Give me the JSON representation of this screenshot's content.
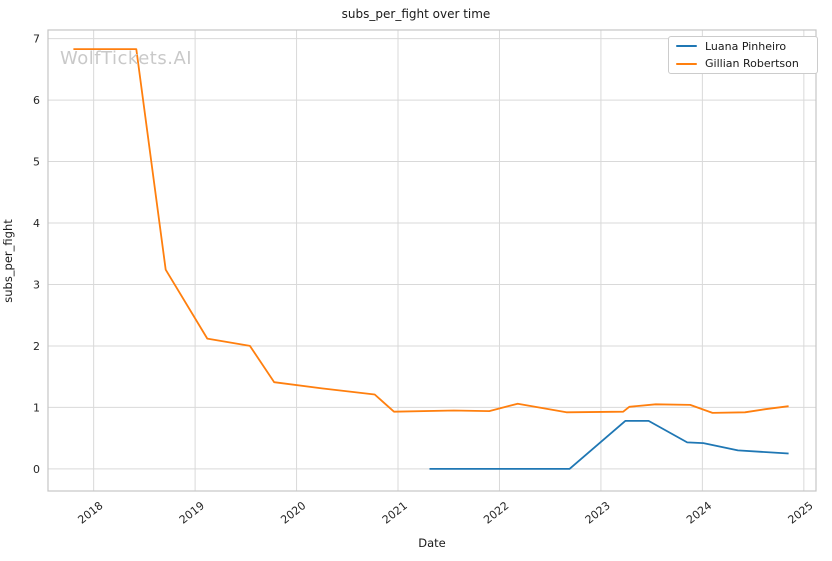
{
  "chart": {
    "title": "subs_per_fight over time",
    "xlabel": "Date",
    "ylabel": "subs_per_fight",
    "watermark": "WolfTickets.AI",
    "legend": [
      {
        "label": "Luana Pinheiro",
        "color": "#1f77b4"
      },
      {
        "label": "Gillian Robertson",
        "color": "#ff7f0e"
      }
    ]
  },
  "chart_data": {
    "type": "line",
    "title": "subs_per_fight over time",
    "xlabel": "Date",
    "ylabel": "subs_per_fight",
    "watermark": "WolfTickets.AI",
    "grid": true,
    "legend_position": "upper right",
    "xlim": [
      2017.55,
      2025.12
    ],
    "ylim": [
      -0.36,
      7.14
    ],
    "x_ticks": [
      2018,
      2019,
      2020,
      2021,
      2022,
      2023,
      2024,
      2025
    ],
    "y_ticks": [
      0,
      1,
      2,
      3,
      4,
      5,
      6,
      7
    ],
    "grid_color": "#d9d9d9",
    "spine_color": "#c6c6c6",
    "tick_label_color": "#262626",
    "series": [
      {
        "name": "Luana Pinheiro",
        "color": "#1f77b4",
        "points": [
          [
            2021.31,
            0.0
          ],
          [
            2022.69,
            0.0
          ],
          [
            2023.24,
            0.78
          ],
          [
            2023.47,
            0.78
          ],
          [
            2023.85,
            0.43
          ],
          [
            2024.01,
            0.42
          ],
          [
            2024.35,
            0.3
          ],
          [
            2024.85,
            0.25
          ]
        ]
      },
      {
        "name": "Gillian Robertson",
        "color": "#ff7f0e",
        "points": [
          [
            2017.8,
            6.83
          ],
          [
            2018.42,
            6.83
          ],
          [
            2018.71,
            3.24
          ],
          [
            2019.12,
            2.12
          ],
          [
            2019.54,
            2.0
          ],
          [
            2019.78,
            1.41
          ],
          [
            2020.25,
            1.31
          ],
          [
            2020.77,
            1.21
          ],
          [
            2020.96,
            0.93
          ],
          [
            2021.55,
            0.95
          ],
          [
            2021.9,
            0.94
          ],
          [
            2022.18,
            1.06
          ],
          [
            2022.66,
            0.92
          ],
          [
            2023.22,
            0.93
          ],
          [
            2023.28,
            1.01
          ],
          [
            2023.54,
            1.05
          ],
          [
            2023.88,
            1.04
          ],
          [
            2024.1,
            0.91
          ],
          [
            2024.42,
            0.92
          ],
          [
            2024.62,
            0.97
          ],
          [
            2024.85,
            1.02
          ]
        ]
      }
    ]
  }
}
